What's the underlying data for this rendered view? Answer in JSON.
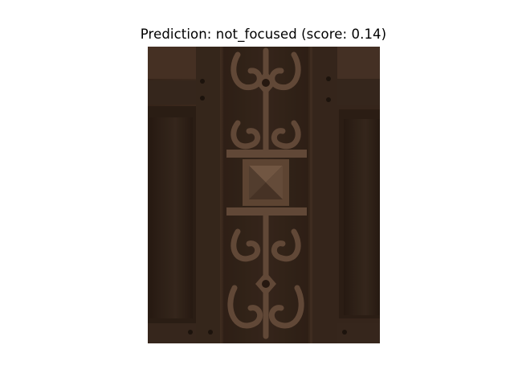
{
  "figure": {
    "title": "Prediction: not_focused (score: 0.14)"
  },
  "photo": {
    "subject": "carved wooden door panel with ornamental scrollwork",
    "palette": {
      "dark_wood": "#2a1a10",
      "mid_wood": "#5a4030",
      "light_wood": "#7a5f4a",
      "shadow": "#1c120b"
    }
  }
}
